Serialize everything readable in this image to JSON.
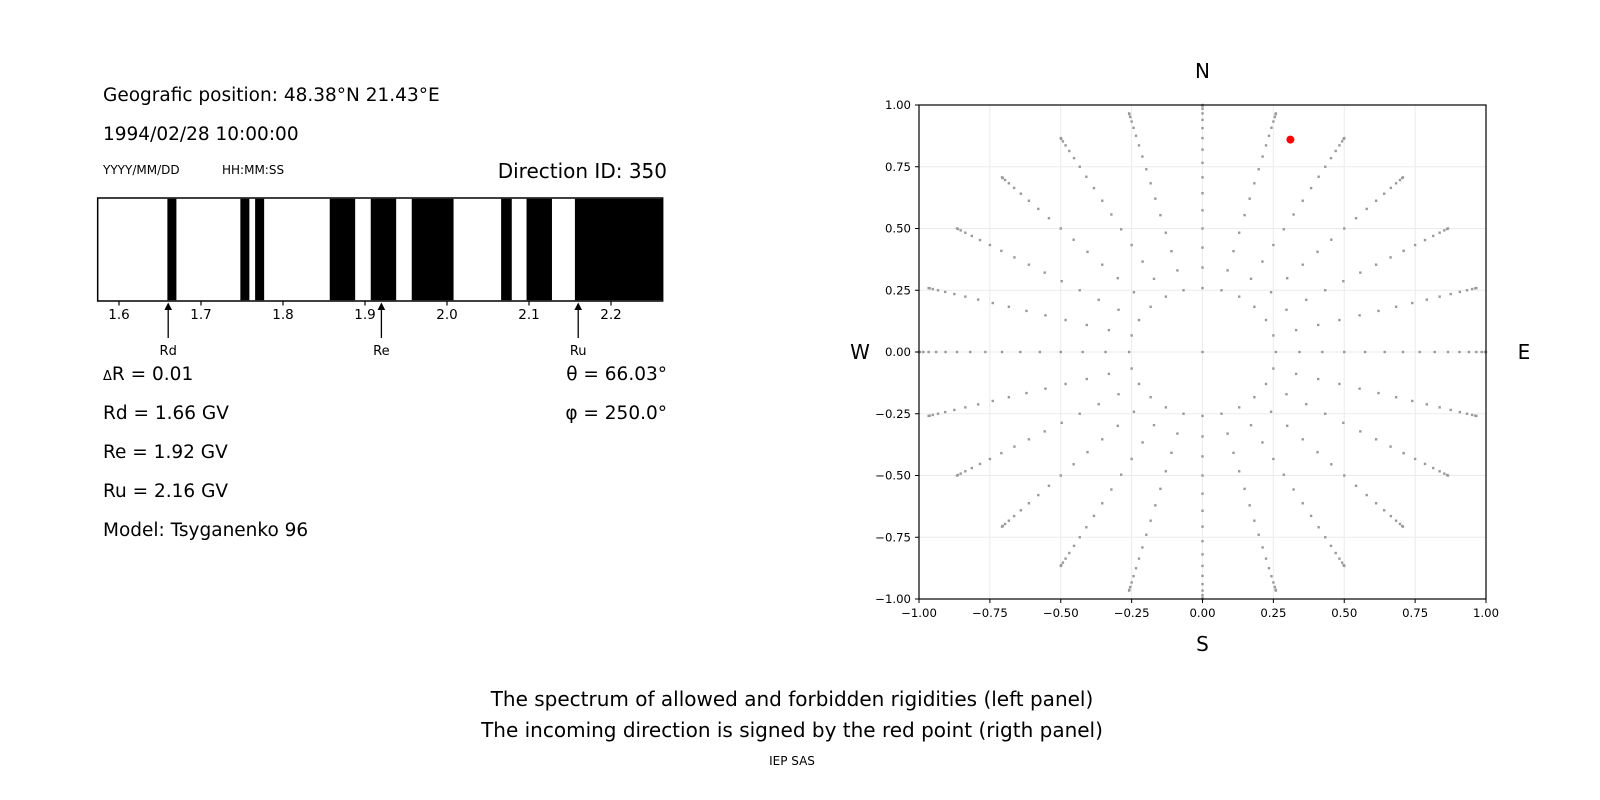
{
  "header": {
    "geographic_position": "Geografic position: 48.38°N 21.43°E",
    "datetime": "1994/02/28 10:00:00",
    "date_format_label": "YYYY/MM/DD",
    "time_format_label": "HH:MM:SS",
    "direction_id": "Direction ID: 350"
  },
  "parameters": {
    "delta_sym": "Δ",
    "delta_rest": "R = 0.01",
    "rd": "Rd = 1.66 GV",
    "re": "Re = 1.92 GV",
    "ru": "Ru = 2.16 GV",
    "model": "Model: Tsyganenko 96",
    "theta": "θ = 66.03°",
    "phi": "φ = 250.0°"
  },
  "caption": {
    "line1": "The spectrum of allowed and forbidden rigidities (left panel)",
    "line2": "The incoming direction is signed by the red point (rigth panel)",
    "credit": "IEP SAS"
  },
  "chart_data": [
    {
      "id": "rigidity-spectrum",
      "type": "bar",
      "title": "",
      "xlabel": "",
      "ylabel": "",
      "xlim": [
        1.574,
        2.263
      ],
      "x_ticks": [
        1.6,
        1.7,
        1.8,
        1.9,
        2.0,
        2.1,
        2.2
      ],
      "x_tick_labels": [
        "1.6",
        "1.7",
        "1.8",
        "1.9",
        "2.0",
        "2.1",
        "2.2"
      ],
      "forbidden_bands_gv": [
        [
          1.659,
          1.67
        ],
        [
          1.748,
          1.759
        ],
        [
          1.766,
          1.777
        ],
        [
          1.857,
          1.888
        ],
        [
          1.907,
          1.938
        ],
        [
          1.957,
          2.008
        ],
        [
          2.066,
          2.079
        ],
        [
          2.097,
          2.128
        ],
        [
          2.156,
          2.263
        ]
      ],
      "markers": [
        {
          "label": "Rd",
          "value": 1.66
        },
        {
          "label": "Re",
          "value": 1.92
        },
        {
          "label": "Ru",
          "value": 2.16
        }
      ],
      "band_color": "#000000",
      "background_color": "#ffffff"
    },
    {
      "id": "direction-map",
      "type": "scatter",
      "title": "",
      "xlim": [
        -1.0,
        1.0
      ],
      "ylim": [
        -1.0,
        1.0
      ],
      "x_ticks": [
        -1.0,
        -0.75,
        -0.5,
        -0.25,
        0.0,
        0.25,
        0.5,
        0.75,
        1.0
      ],
      "x_tick_labels": [
        "−1.00",
        "−0.75",
        "−0.50",
        "−0.25",
        "0.00",
        "0.25",
        "0.50",
        "0.75",
        "1.00"
      ],
      "y_ticks": [
        1.0,
        0.75,
        0.5,
        0.25,
        0.0,
        -0.25,
        -0.5,
        -0.75,
        -1.0
      ],
      "y_tick_labels": [
        "1.00",
        "0.75",
        "0.50",
        "0.25",
        "0.00",
        "−0.25",
        "−0.50",
        "−0.75",
        "−1.00"
      ],
      "compass_labels": {
        "top": "N",
        "bottom": "S",
        "left": "W",
        "right": "E"
      },
      "grid": true,
      "grid_color": "#ebebeb",
      "dot_color": "#9a9a9a",
      "spokes": {
        "azimuth_deg": [
          0,
          15,
          30,
          45,
          60,
          75,
          90,
          105,
          120,
          135,
          150,
          165,
          180,
          195,
          210,
          225,
          240,
          255,
          270,
          285,
          300,
          315,
          330,
          345
        ],
        "zenith_deg": [
          15,
          20,
          25,
          30,
          35,
          40,
          45,
          50,
          55,
          60,
          65,
          70,
          75,
          80,
          85,
          90
        ],
        "radii": [
          0.2588,
          0.342,
          0.4226,
          0.5,
          0.5736,
          0.6428,
          0.7071,
          0.766,
          0.8192,
          0.866,
          0.9063,
          0.9397,
          0.9659,
          0.9848,
          0.9962,
          1.0
        ]
      },
      "center_dot": {
        "x": 0.0,
        "y": 0.0
      },
      "red_point": {
        "x": 0.31,
        "y": 0.86,
        "color": "#ff0000"
      }
    }
  ]
}
